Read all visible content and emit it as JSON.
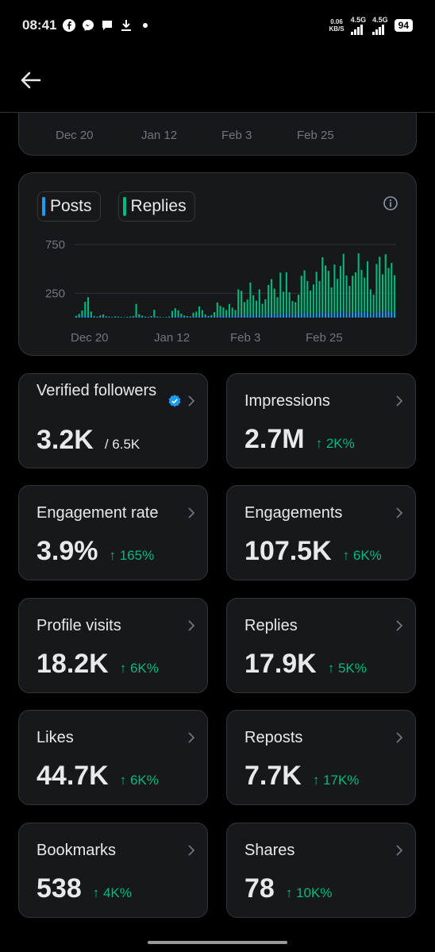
{
  "status_bar": {
    "time": "08:41",
    "net_speed_value": "0.06",
    "net_speed_unit": "KB/S",
    "sim1": "4.5G",
    "sim2": "4.5G",
    "battery": "94",
    "left_icons": [
      "facebook-icon",
      "messenger-icon",
      "chat-icon",
      "download-icon",
      "dot-icon"
    ]
  },
  "top_chart": {
    "x_ticks": [
      "Dec 20",
      "Jan 12",
      "Feb 3",
      "Feb 25"
    ]
  },
  "activity_chart": {
    "legend": [
      {
        "label": "Posts",
        "color": "#1d9bf0"
      },
      {
        "label": "Replies",
        "color": "#00ba7c"
      }
    ]
  },
  "chart_data": {
    "type": "bar",
    "stacked": true,
    "x_ticks": [
      "Dec 20",
      "Jan 12",
      "Feb 3",
      "Feb 25"
    ],
    "y_ticks": [
      250,
      750
    ],
    "ylim": [
      0,
      1000
    ],
    "grid": true,
    "legend_position": "top-left",
    "series": [
      {
        "name": "Posts",
        "color": "#1d9bf0",
        "values": [
          8,
          10,
          14,
          22,
          30,
          12,
          6,
          4,
          8,
          10,
          6,
          4,
          3,
          5,
          4,
          3,
          2,
          3,
          4,
          6,
          10,
          15,
          8,
          4,
          3,
          6,
          10,
          4,
          3,
          2,
          3,
          4,
          8,
          12,
          15,
          10,
          8,
          6,
          4,
          10,
          12,
          15,
          18,
          12,
          6,
          8,
          10,
          15,
          20,
          25,
          18,
          20,
          22,
          18,
          30,
          25,
          20,
          35,
          40,
          30,
          25,
          30,
          22,
          28,
          35,
          45,
          38,
          30,
          42,
          35,
          45,
          40,
          30,
          28,
          35,
          50,
          55,
          45,
          38,
          40,
          50,
          45,
          60,
          55,
          50,
          40,
          55,
          48,
          60,
          65,
          52,
          45,
          50,
          55,
          70,
          60,
          50,
          58,
          40,
          35,
          60,
          65,
          55,
          70,
          60,
          62,
          55
        ]
      },
      {
        "name": "Replies",
        "color": "#00ba7c",
        "values": [
          10,
          28,
          60,
          140,
          180,
          50,
          10,
          6,
          14,
          22,
          8,
          5,
          4,
          8,
          6,
          4,
          3,
          5,
          6,
          10,
          130,
          20,
          12,
          6,
          5,
          10,
          70,
          6,
          5,
          3,
          5,
          6,
          60,
          85,
          60,
          30,
          14,
          10,
          8,
          40,
          50,
          100,
          60,
          20,
          10,
          18,
          45,
          140,
          100,
          80,
          60,
          120,
          80,
          60,
          260,
          250,
          140,
          150,
          320,
          200,
          150,
          260,
          120,
          160,
          300,
          350,
          260,
          180,
          420,
          230,
          420,
          220,
          140,
          130,
          200,
          380,
          430,
          330,
          240,
          300,
          420,
          330,
          560,
          480,
          430,
          270,
          490,
          350,
          470,
          590,
          380,
          280,
          380,
          410,
          590,
          430,
          360,
          520,
          250,
          200,
          490,
          560,
          390,
          580,
          450,
          500,
          380
        ]
      }
    ]
  },
  "stats": [
    {
      "label": "Verified followers",
      "value": "3.2K",
      "sub": "/ 6.5K",
      "verified": true
    },
    {
      "label": "Impressions",
      "value": "2.7M",
      "change": "↑ 2K%"
    },
    {
      "label": "Engagement rate",
      "value": "3.9%",
      "change": "↑ 165%"
    },
    {
      "label": "Engagements",
      "value": "107.5K",
      "change": "↑ 6K%"
    },
    {
      "label": "Profile visits",
      "value": "18.2K",
      "change": "↑ 6K%"
    },
    {
      "label": "Replies",
      "value": "17.9K",
      "change": "↑ 5K%"
    },
    {
      "label": "Likes",
      "value": "44.7K",
      "change": "↑ 6K%"
    },
    {
      "label": "Reposts",
      "value": "7.7K",
      "change": "↑ 17K%"
    },
    {
      "label": "Bookmarks",
      "value": "538",
      "change": "↑ 4K%"
    },
    {
      "label": "Shares",
      "value": "78",
      "change": "↑ 10K%"
    }
  ]
}
